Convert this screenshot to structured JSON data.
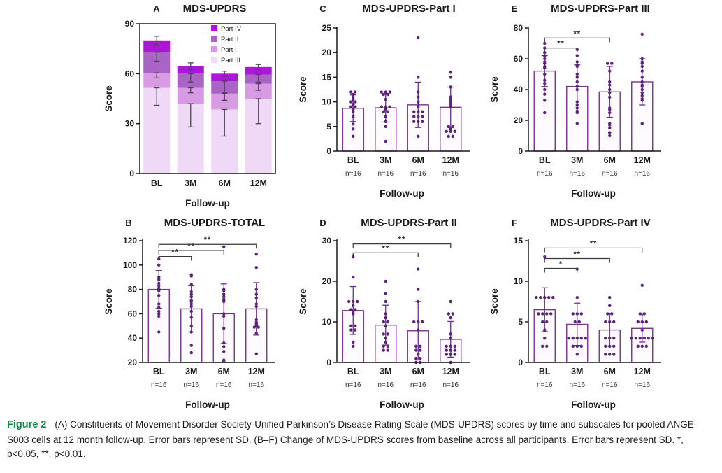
{
  "figure": {
    "caption_label": "Figure 2",
    "caption_text": "(A) Constituents of Movement Disorder Society-Unified Parkinson’s Disease Rating Scale (MDS-UPDRS) scores by time and subscales for pooled ANGE-S003 cells at 12 month follow-up. Error bars represent SD. (B–F) Change of MDS-UPDRS scores from baseline across all participants. Error bars represent SD. *, p<0.05, **, p<0.01."
  },
  "colors": {
    "caption_label": "#0a8a43",
    "axis": "#1a1a1a",
    "bar_outline": "#7b3294",
    "bar_fill": "#fdfbfe",
    "error_bar": "#6b2e8f",
    "point": "#5c2478",
    "bracket": "#3a3a3a",
    "stacked_error": "#4d4452",
    "part_iv": "#ab17d6",
    "part_ii": "#a964c6",
    "part_i": "#d79ae3",
    "part_iii": "#efd9f6"
  },
  "chart_data": [
    {
      "id": "A",
      "letter": "A",
      "type": "stacked-bar",
      "title": "MDS-UPDRS",
      "ylabel": "Score",
      "xlabel": "Follow-up",
      "ylim": [
        0,
        90
      ],
      "ytick": 30,
      "grid": false,
      "legend_position": "top-right",
      "categories": [
        "BL",
        "3M",
        "6M",
        "12M"
      ],
      "series": [
        {
          "name": "Part IV",
          "color": "#ab17d6",
          "values": [
            7,
            4.5,
            4.5,
            4.5
          ],
          "sd": [
            2.5,
            2,
            1.5,
            1.5
          ]
        },
        {
          "name": "Part II",
          "color": "#a964c6",
          "values": [
            12.5,
            8.5,
            7.5,
            5.5
          ],
          "sd": [
            5.5,
            5,
            7,
            4.5
          ]
        },
        {
          "name": "Part I",
          "color": "#d79ae3",
          "values": [
            9,
            9.5,
            9.5,
            9
          ],
          "sd": [
            3,
            3,
            4,
            4
          ]
        },
        {
          "name": "Part III",
          "color": "#efd9f6",
          "values": [
            51.5,
            42,
            38.5,
            45
          ],
          "sd": [
            10.5,
            14,
            16,
            15
          ]
        }
      ]
    },
    {
      "id": "C",
      "letter": "C",
      "type": "scatter-bar",
      "title": "MDS-UPDRS-Part I",
      "ylabel": "Score",
      "xlabel": "Follow-up",
      "ylim": [
        0,
        25
      ],
      "ytick": 5,
      "categories": [
        "BL",
        "3M",
        "6M",
        "12M"
      ],
      "n_labels": [
        "n=16",
        "n=16",
        "n=16",
        "n=16"
      ],
      "means": [
        8.7,
        8.8,
        9.4,
        8.9
      ],
      "sd": [
        2.7,
        2.9,
        4.6,
        4.1
      ],
      "points": [
        [
          12,
          12,
          11.5,
          11,
          10.5,
          10,
          10,
          9.5,
          9,
          9,
          8.5,
          8,
          7,
          5.5,
          4.5,
          3
        ],
        [
          12,
          12,
          12,
          11.5,
          11.5,
          10.5,
          9,
          9,
          9,
          8.5,
          8,
          8,
          7,
          6,
          5,
          2
        ],
        [
          23,
          15,
          12,
          11,
          10,
          9,
          8,
          8,
          8,
          7,
          7,
          7,
          6,
          6,
          6,
          3
        ],
        [
          16,
          15,
          13,
          11,
          10.5,
          10,
          9.5,
          9,
          5,
          5,
          4.5,
          4,
          4,
          4,
          3,
          3
        ]
      ],
      "brackets": []
    },
    {
      "id": "E",
      "letter": "E",
      "type": "scatter-bar",
      "title": "MDS-UPDRS-Part III",
      "ylabel": "Score",
      "xlabel": "Follow-up",
      "ylim": [
        0,
        80
      ],
      "ytick": 20,
      "categories": [
        "BL",
        "3M",
        "6M",
        "12M"
      ],
      "n_labels": [
        "n=16",
        "n=16",
        "n=16",
        "n=16"
      ],
      "means": [
        52,
        42,
        38.5,
        45
      ],
      "sd": [
        10,
        14,
        16.5,
        15
      ],
      "points": [
        [
          70,
          67,
          64,
          62,
          60,
          58,
          57,
          55,
          54,
          50,
          46,
          44,
          40,
          37,
          33,
          25
        ],
        [
          66,
          62,
          58,
          56,
          55,
          50,
          48,
          45,
          42,
          40,
          32,
          30,
          28,
          26,
          25,
          18
        ],
        [
          57,
          57,
          52,
          45,
          43,
          40,
          38,
          35,
          28,
          27,
          25,
          18,
          17,
          15,
          12,
          10
        ],
        [
          76,
          60,
          58,
          57,
          55,
          52,
          48,
          45,
          43,
          42,
          40,
          38,
          36,
          34,
          33,
          18
        ]
      ],
      "brackets": [
        {
          "from": 0,
          "to": 1,
          "y": 67,
          "label": "**"
        },
        {
          "from": 0,
          "to": 2,
          "y": 73.5,
          "label": "**"
        }
      ]
    },
    {
      "id": "B",
      "letter": "B",
      "type": "scatter-bar",
      "title": "MDS-UPDRS-TOTAL",
      "ylabel": "Score",
      "xlabel": "Follow-up",
      "ylim": [
        20,
        120
      ],
      "ytick": 20,
      "categories": [
        "BL",
        "3M",
        "6M",
        "12M"
      ],
      "n_labels": [
        "n=16",
        "n=16",
        "n=16",
        "n=16"
      ],
      "means": [
        80,
        64,
        60,
        64
      ],
      "sd": [
        15.5,
        19,
        24.5,
        21.5
      ],
      "points": [
        [
          105,
          100,
          90,
          88,
          85,
          83,
          81,
          80,
          79,
          75,
          68,
          65,
          62,
          60,
          58,
          45
        ],
        [
          92,
          91,
          84,
          78,
          76,
          74,
          71,
          70,
          68,
          66,
          62,
          57,
          50,
          45,
          34,
          28
        ],
        [
          115,
          80,
          79,
          76,
          74,
          72,
          71,
          70,
          60,
          58,
          48,
          36,
          33,
          29,
          22,
          21
        ],
        [
          109,
          98,
          80,
          76,
          73,
          68,
          66,
          55,
          53,
          52,
          51,
          50,
          49,
          49,
          44,
          27
        ]
      ],
      "brackets": [
        {
          "from": 0,
          "to": 1,
          "y": 107,
          "label": "**"
        },
        {
          "from": 0,
          "to": 2,
          "y": 112,
          "label": "**"
        },
        {
          "from": 0,
          "to": 3,
          "y": 117,
          "label": "**"
        }
      ]
    },
    {
      "id": "D",
      "letter": "D",
      "type": "scatter-bar",
      "title": "MDS-UPDRS-Part II",
      "ylabel": "Score",
      "xlabel": "Follow-up",
      "ylim": [
        0,
        30
      ],
      "ytick": 10,
      "categories": [
        "BL",
        "3M",
        "6M",
        "12M"
      ],
      "n_labels": [
        "n=16",
        "n=16",
        "n=16",
        "n=16"
      ],
      "means": [
        12.8,
        9.2,
        7.8,
        5.7
      ],
      "sd": [
        5.9,
        4.9,
        7.2,
        4.4
      ],
      "points": [
        [
          26,
          21,
          15,
          15,
          15,
          14,
          13,
          13,
          12.5,
          12,
          9,
          9,
          8,
          8,
          5,
          4
        ],
        [
          20,
          17,
          15,
          12,
          11,
          10,
          10,
          9,
          7,
          7,
          6,
          5,
          4,
          4,
          3,
          3
        ],
        [
          23,
          18,
          15,
          10,
          10,
          10,
          8,
          4,
          4,
          3,
          3,
          2,
          1,
          1,
          0,
          0
        ],
        [
          15,
          12,
          12,
          11,
          7,
          6,
          4,
          4,
          4,
          3,
          3,
          3,
          2,
          2,
          2,
          0
        ]
      ],
      "brackets": [
        {
          "from": 0,
          "to": 2,
          "y": 27,
          "label": "**"
        },
        {
          "from": 0,
          "to": 3,
          "y": 29.2,
          "label": "**"
        }
      ]
    },
    {
      "id": "F",
      "letter": "F",
      "type": "scatter-bar",
      "title": "MDS-UPDRS-Part IV",
      "ylabel": "Score",
      "xlabel": "Follow-up",
      "ylim": [
        0,
        15
      ],
      "ytick": 5,
      "categories": [
        "BL",
        "3M",
        "6M",
        "12M"
      ],
      "n_labels": [
        "n=16",
        "n=16",
        "n=16",
        "n=16"
      ],
      "means": [
        6.5,
        4.7,
        4.0,
        4.2
      ],
      "sd": [
        2.7,
        2.6,
        2.0,
        1.7
      ],
      "points": [
        [
          13,
          8,
          8,
          8,
          8,
          8,
          6,
          6,
          6,
          6,
          5,
          5,
          4,
          3,
          2,
          2
        ],
        [
          11.5,
          8,
          6,
          6,
          6,
          5,
          5,
          3,
          3,
          3,
          3,
          3,
          2,
          2,
          2,
          1
        ],
        [
          8,
          7,
          6,
          6,
          5,
          5,
          5,
          3,
          3,
          3,
          2,
          2,
          2,
          1,
          1,
          1
        ],
        [
          9.5,
          6,
          6,
          5,
          5,
          5,
          4,
          3,
          3,
          3,
          3,
          3,
          3,
          2,
          2,
          2
        ]
      ],
      "brackets": [
        {
          "from": 0,
          "to": 1,
          "y": 11.6,
          "label": "*"
        },
        {
          "from": 0,
          "to": 2,
          "y": 12.8,
          "label": "**"
        },
        {
          "from": 0,
          "to": 3,
          "y": 14.1,
          "label": "**"
        }
      ]
    }
  ]
}
